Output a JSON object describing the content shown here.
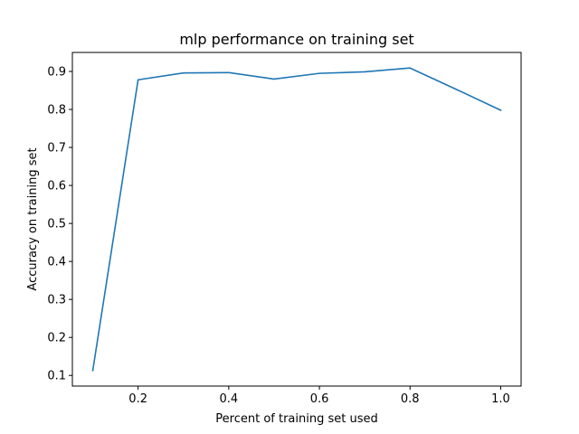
{
  "chart_data": {
    "type": "line",
    "title": "mlp performance on training set",
    "xlabel": "Percent of training set used",
    "ylabel": "Accuracy on training set",
    "xlim": [
      0.055,
      1.045
    ],
    "ylim": [
      0.072,
      0.95
    ],
    "xticks": [
      "0.2",
      "0.4",
      "0.6",
      "0.8",
      "1.0"
    ],
    "yticks": [
      "0.1",
      "0.2",
      "0.3",
      "0.4",
      "0.5",
      "0.6",
      "0.7",
      "0.8",
      "0.9"
    ],
    "grid": false,
    "series": [
      {
        "color": "#1f77b4",
        "x": [
          0.1,
          0.2,
          0.3,
          0.4,
          0.5,
          0.6,
          0.7,
          0.8,
          0.9,
          1.0
        ],
        "y": [
          0.113,
          0.878,
          0.896,
          0.897,
          0.88,
          0.895,
          0.899,
          0.909,
          0.854,
          0.798
        ]
      }
    ]
  }
}
